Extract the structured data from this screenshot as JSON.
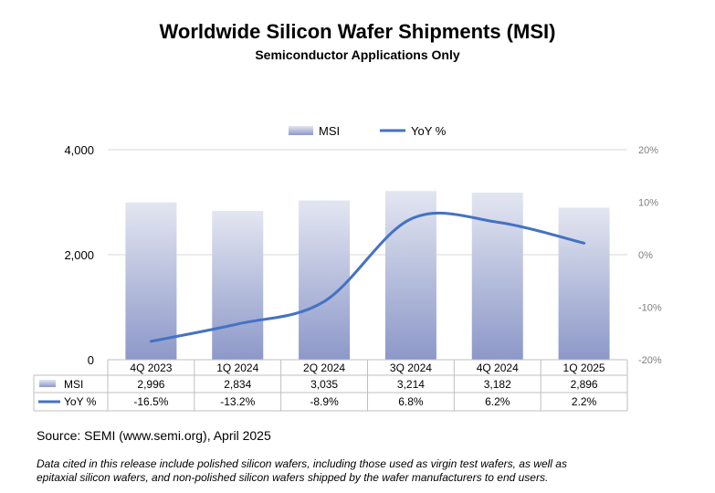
{
  "chart_data": {
    "type": "bar",
    "title": "Worldwide Silicon Wafer Shipments (MSI)",
    "subtitle": "Semiconductor Applications Only",
    "categories": [
      "4Q 2023",
      "1Q 2024",
      "2Q 2024",
      "3Q 2024",
      "4Q 2024",
      "1Q 2025"
    ],
    "series": [
      {
        "name": "MSI",
        "type": "bar",
        "axis": "left",
        "values": [
          2996,
          2834,
          3035,
          3214,
          3182,
          2896
        ],
        "labels": [
          "2,996",
          "2,834",
          "3,035",
          "3,214",
          "3,182",
          "2,896"
        ]
      },
      {
        "name": "YoY %",
        "type": "line",
        "axis": "right",
        "values": [
          -16.5,
          -13.2,
          -8.9,
          6.8,
          6.2,
          2.2
        ],
        "labels": [
          "-16.5%",
          "-13.2%",
          "-8.9%",
          "6.8%",
          "6.2%",
          "2.2%"
        ]
      }
    ],
    "left_axis": {
      "min": 0,
      "max": 4000,
      "ticks": [
        0,
        2000,
        4000
      ],
      "tick_labels": [
        "0",
        "2,000",
        "4,000"
      ]
    },
    "right_axis": {
      "min": -20,
      "max": 20,
      "ticks": [
        20,
        10,
        0,
        -10,
        -20
      ],
      "tick_labels": [
        "20%",
        "10%",
        "0%",
        "-10%",
        "-20%"
      ]
    },
    "legend": [
      "MSI",
      "YoY %"
    ],
    "legend_position": "top",
    "data_table": true,
    "colors": {
      "bar_top": "#e3e6f1",
      "bar_bottom": "#8c98c8",
      "line": "#4472c4",
      "grid": "#d9d9d9",
      "table_border": "#bfbfbf"
    }
  },
  "source": "Source: SEMI (www.semi.org), April 2025",
  "note": "Data cited in this release include polished silicon wafers, including those used as virgin test wafers, as well as epitaxial silicon wafers, and non-polished silicon wafers shipped by the wafer manufacturers to end users."
}
